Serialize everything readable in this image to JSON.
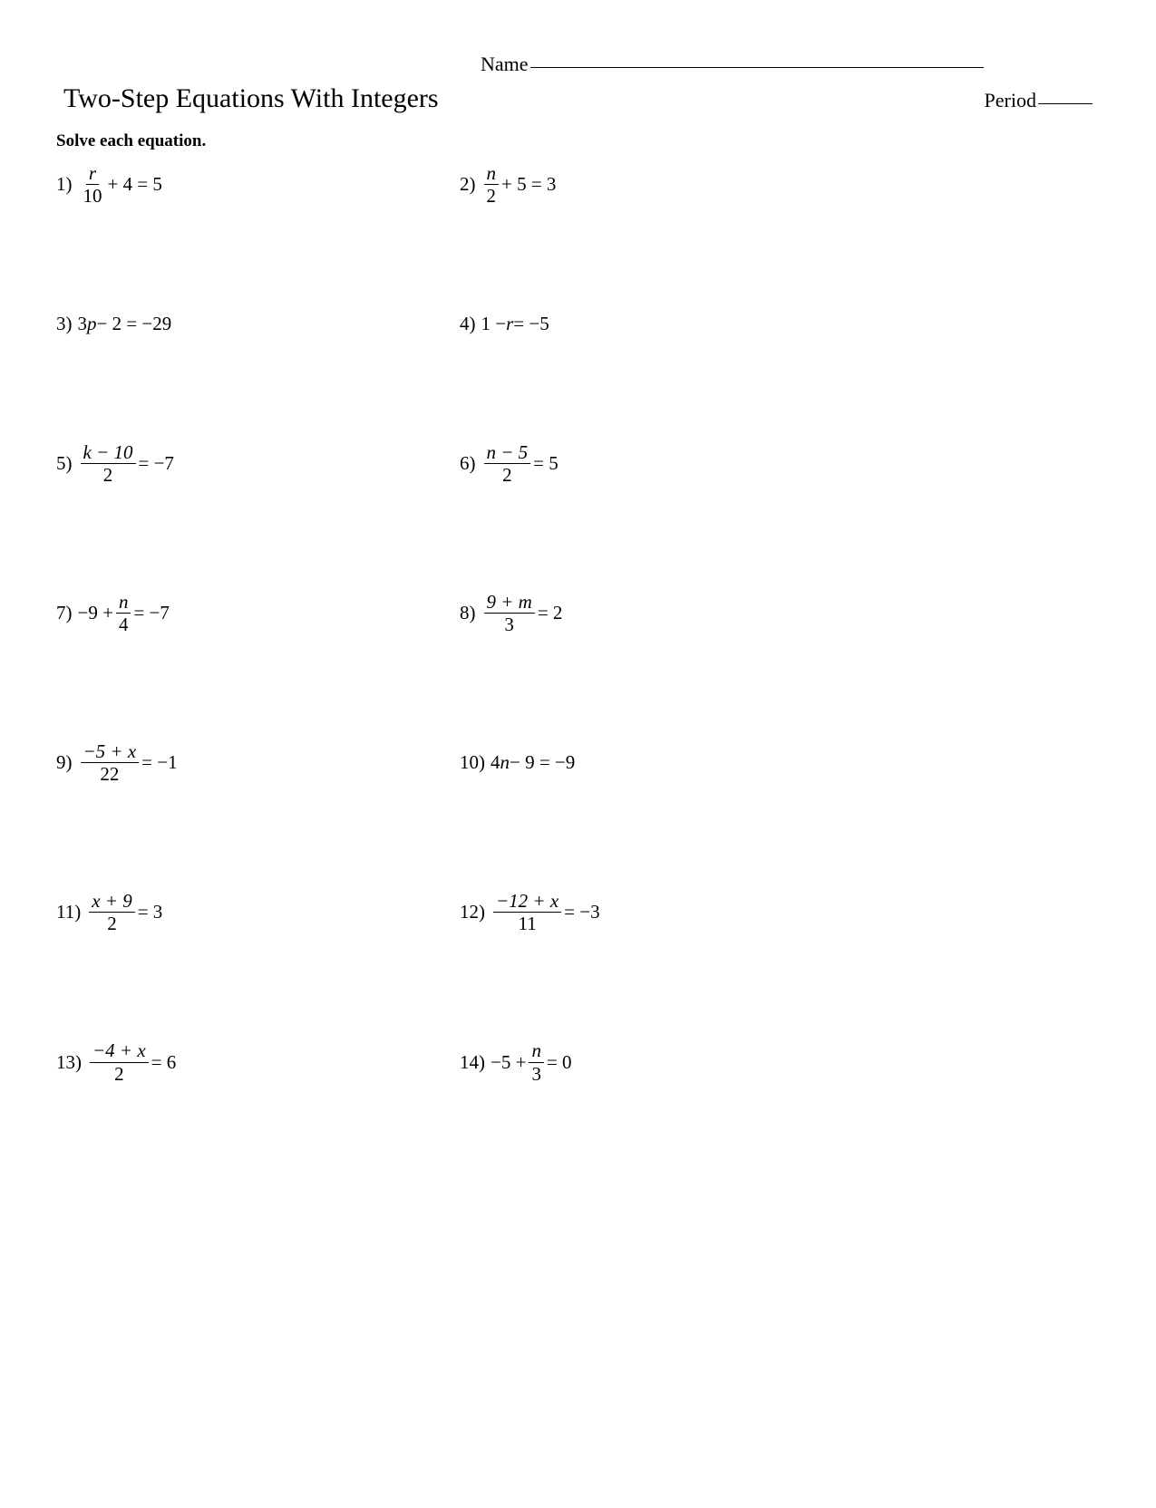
{
  "header": {
    "name_label": "Name",
    "title": "Two-Step Equations With Integers",
    "period_label": "Period"
  },
  "instructions": "Solve each equation.",
  "problems": [
    {
      "n": "1)",
      "frac_top": "r",
      "frac_top_italic": true,
      "frac_bot": "10",
      "after": " + 4 = 5"
    },
    {
      "n": "2)",
      "frac_top": "n",
      "frac_top_italic": true,
      "frac_bot": "2",
      "after": " + 5 = 3"
    },
    {
      "n": "3)",
      "plain_before": "3",
      "plain_var": "p",
      "plain_after": " − 2 = −29"
    },
    {
      "n": "4)",
      "plain_before": "1 − ",
      "plain_var": "r",
      "plain_after": " = −5"
    },
    {
      "n": "5)",
      "frac_top": "k − 10",
      "frac_top_italic": true,
      "frac_bot": "2",
      "after": " = −7"
    },
    {
      "n": "6)",
      "frac_top": "n − 5",
      "frac_top_italic": true,
      "frac_bot": "2",
      "after": " = 5"
    },
    {
      "n": "7)",
      "before": "−9 + ",
      "frac_top": "n",
      "frac_top_italic": true,
      "frac_bot": "4",
      "after": " = −7"
    },
    {
      "n": "8)",
      "frac_top": "9 + m",
      "frac_top_italic": true,
      "frac_bot": "3",
      "after": " = 2"
    },
    {
      "n": "9)",
      "frac_top": "−5 + x",
      "frac_top_italic": true,
      "frac_bot": "22",
      "after": " = −1"
    },
    {
      "n": "10)",
      "plain_before": "4",
      "plain_var": "n",
      "plain_after": " − 9 = −9"
    },
    {
      "n": "11)",
      "frac_top": "x + 9",
      "frac_top_italic": true,
      "frac_bot": "2",
      "after": " = 3"
    },
    {
      "n": "12)",
      "frac_top": "−12 + x",
      "frac_top_italic": true,
      "frac_bot": "11",
      "after": " = −3"
    },
    {
      "n": "13)",
      "frac_top": "−4 + x",
      "frac_top_italic": true,
      "frac_bot": "2",
      "after": " = 6"
    },
    {
      "n": "14)",
      "before": "−5 + ",
      "frac_top": "n",
      "frac_top_italic": true,
      "frac_bot": "3",
      "after": " = 0"
    }
  ]
}
